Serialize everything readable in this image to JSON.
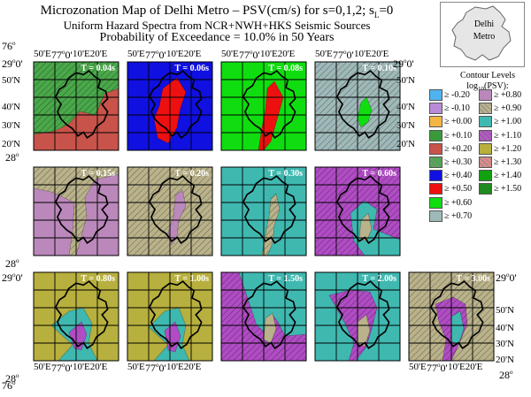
{
  "title_main": "Microzonation Map of Delhi Metro – PSV(cm/s) for s=0,1,2; s",
  "title_sub_L": "L",
  "title_eq": "=0",
  "title_line2": "Uniform Hazard Spectra from NCR+NWH+HKS Seismic Sources",
  "title_line3": "Probability of Exceedance = 10.0% in 50 Years",
  "inset_label_1": "Delhi",
  "inset_label_2": "Metro",
  "legend_title": "Contour Levels",
  "legend_sub": "log",
  "legend_sub_idx": "10",
  "legend_sub_rest": "(PSV):",
  "legend_left": [
    {
      "label": "≥ -0.20",
      "color": "#4fb3f0",
      "hatch": false
    },
    {
      "label": "≥ -0.10",
      "color": "#b98ad8",
      "hatch": false
    },
    {
      "label": "≥ +0.00",
      "color": "#f5b545",
      "hatch": false
    },
    {
      "label": "≥ +0.10",
      "color": "#3a9a3a",
      "hatch": false
    },
    {
      "label": "≥ +0.20",
      "color": "#c8534a",
      "hatch": false
    },
    {
      "label": "≥ +0.30",
      "color": "#4aa84a",
      "hatch": true
    },
    {
      "label": "≥ +0.40",
      "color": "#1010e0",
      "hatch": false
    },
    {
      "label": "≥ +0.50",
      "color": "#ee1010",
      "hatch": false
    },
    {
      "label": "≥ +0.60",
      "color": "#10dd10",
      "hatch": false
    },
    {
      "label": "≥ +0.70",
      "color": "#9fb8b8",
      "hatch": false
    }
  ],
  "legend_right": [
    {
      "label": "≥ +0.80",
      "color": "#bb88bb",
      "hatch": false
    },
    {
      "label": "≥ +0.90",
      "color": "#b9b28a",
      "hatch": true
    },
    {
      "label": "≥ +1.00",
      "color": "#3fb8b0",
      "hatch": false
    },
    {
      "label": "≥ +1.10",
      "color": "#b04cc4",
      "hatch": true
    },
    {
      "label": "≥ +1.20",
      "color": "#b7b03e",
      "hatch": false
    },
    {
      "label": "≥ +1.30",
      "color": "#e08888",
      "hatch": true
    },
    {
      "label": "≥ +1.40",
      "color": "#10a010",
      "hatch": false
    },
    {
      "label": "≥ +1.50",
      "color": "#1f8a1f",
      "hatch": false
    }
  ],
  "panels": [
    {
      "period": "T = 0.04s",
      "base": "#c8534a",
      "base_hatch": false,
      "zone": "#4aa84a",
      "zone_hatch": true,
      "inner": null
    },
    {
      "period": "T = 0.06s",
      "base": "#1010e0",
      "base_hatch": false,
      "zone": "#ee1010",
      "zone_hatch": false,
      "inner": null
    },
    {
      "period": "T = 0.08s",
      "base": "#10dd10",
      "base_hatch": false,
      "zone": "#ee1010",
      "zone_hatch": false,
      "inner": null
    },
    {
      "period": "T = 0.10s",
      "base": "#9fb8b8",
      "base_hatch": true,
      "zone": "#10dd10",
      "zone_hatch": false,
      "inner": null
    },
    {
      "period": "T = 0.15s",
      "base": "#bb88bb",
      "base_hatch": false,
      "zone": "#b9b28a",
      "zone_hatch": true,
      "inner": null
    },
    {
      "period": "T = 0.20s",
      "base": "#b9b28a",
      "base_hatch": true,
      "zone": "#bb88bb",
      "zone_hatch": false,
      "inner": null
    },
    {
      "period": "T = 0.30s",
      "base": "#3fb8b0",
      "base_hatch": false,
      "zone": "#b9b28a",
      "zone_hatch": true,
      "inner": null
    },
    {
      "period": "T = 0.60s",
      "base": "#b04cc4",
      "base_hatch": true,
      "zone": "#3fb8b0",
      "zone_hatch": false,
      "inner": "#b9b28a"
    },
    {
      "period": "T = 0.80s",
      "base": "#b7b03e",
      "base_hatch": false,
      "zone": "#3fb8b0",
      "zone_hatch": false,
      "inner": "#b04cc4"
    },
    {
      "period": "T = 1.00s",
      "base": "#b7b03e",
      "base_hatch": false,
      "zone": "#3fb8b0",
      "zone_hatch": false,
      "inner": "#b04cc4"
    },
    {
      "period": "T = 1.50s",
      "base": "#b04cc4",
      "base_hatch": true,
      "zone": "#3fb8b0",
      "zone_hatch": false,
      "inner": "#b9b28a"
    },
    {
      "period": "T = 2.00s",
      "base": "#3fb8b0",
      "base_hatch": false,
      "zone": "#b04cc4",
      "zone_hatch": true,
      "inner": "#b9b28a"
    },
    {
      "period": "T = 3.00s",
      "base": "#b9b28a",
      "base_hatch": true,
      "zone": "#b04cc4",
      "zone_hatch": true,
      "inner": "#3fb8b0"
    }
  ],
  "axis": {
    "lon_top_left": "76",
    "lon_deg": "o",
    "lon_top_1": "50'E",
    "lon_top_2": "77",
    "lon_top_2_rest": "0'",
    "lon_top_3": "10'E",
    "lon_top_4": "20'E",
    "lat_29": "29",
    "lat_29_rest": "0'",
    "lat_50": "50'N",
    "lat_40": "40'N",
    "lat_30": "30'N",
    "lat_20": "20'N",
    "lat_28": "28"
  }
}
